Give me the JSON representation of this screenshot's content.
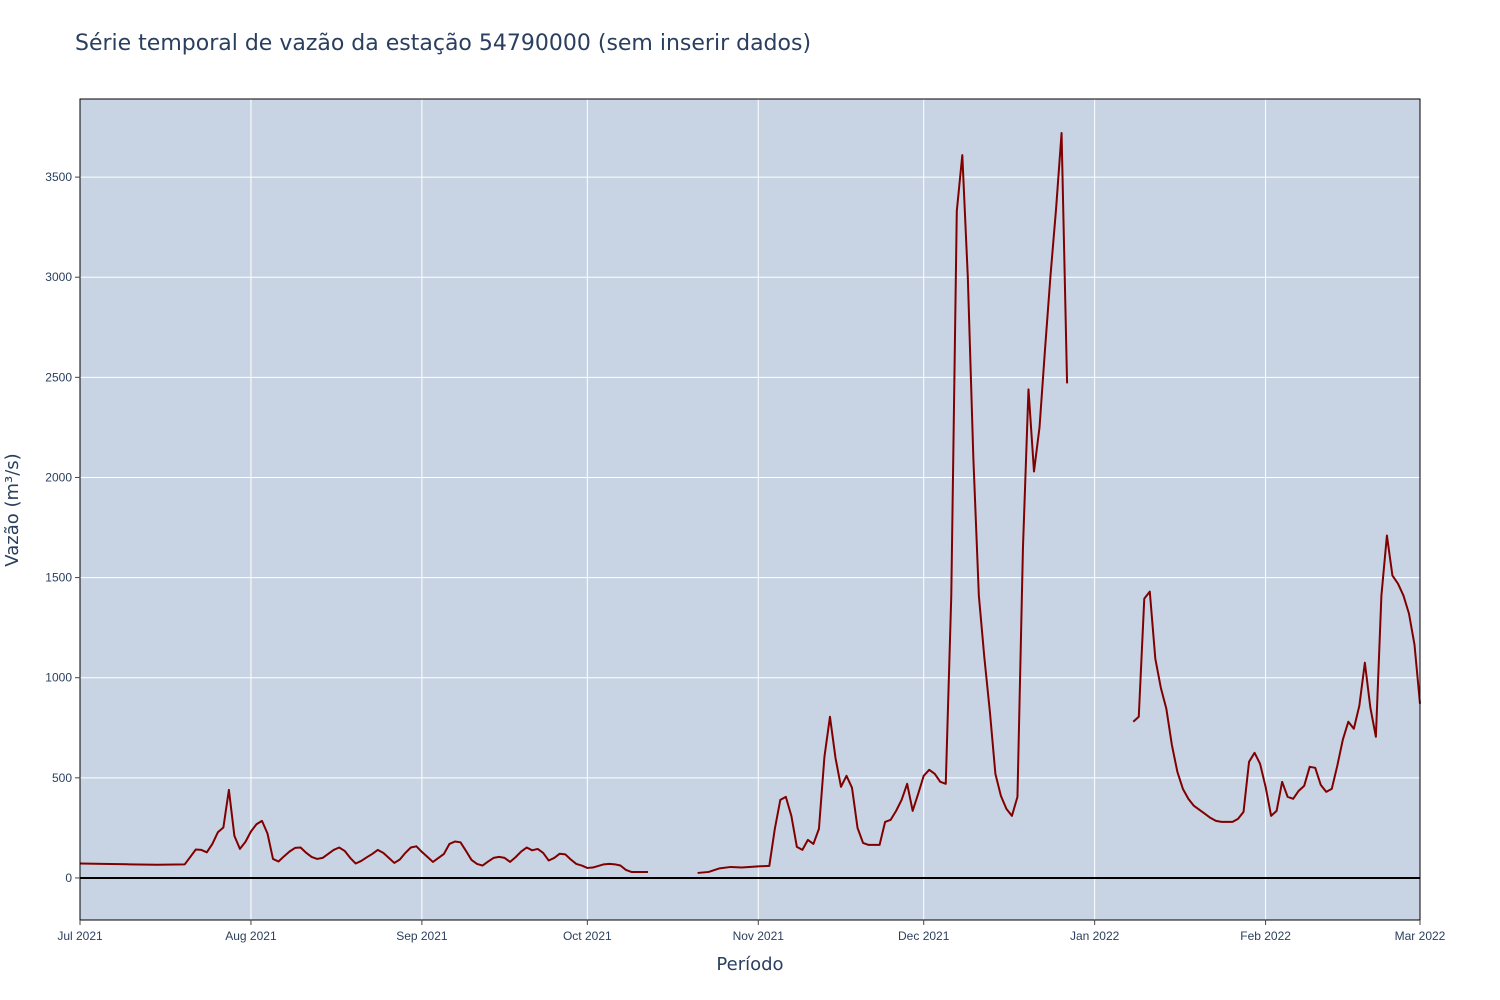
{
  "chart_data": {
    "type": "line",
    "title": "Série temporal de vazão da estação 54790000 (sem inserir dados)",
    "xlabel": "Período",
    "ylabel": "Vazão (m³/s)",
    "xlim": [
      "2021-07-01",
      "2022-03-01"
    ],
    "ylim": [
      -210,
      3890
    ],
    "y_ticks": [
      0,
      500,
      1000,
      1500,
      2000,
      2500,
      3000,
      3500
    ],
    "x_ticks": [
      {
        "date": "2021-07-01",
        "label": "Jul 2021"
      },
      {
        "date": "2021-08-01",
        "label": "Aug 2021"
      },
      {
        "date": "2021-09-01",
        "label": "Sep 2021"
      },
      {
        "date": "2021-10-01",
        "label": "Oct 2021"
      },
      {
        "date": "2021-11-01",
        "label": "Nov 2021"
      },
      {
        "date": "2021-12-01",
        "label": "Dec 2021"
      },
      {
        "date": "2022-01-01",
        "label": "Jan 2022"
      },
      {
        "date": "2022-02-01",
        "label": "Feb 2022"
      },
      {
        "date": "2022-03-01",
        "label": "Mar 2022"
      }
    ],
    "grid": true,
    "zero_line": true,
    "colors": {
      "line": "#800000",
      "plot_bg": "#c8d4e3",
      "grid": "#ffffff",
      "text": "#2a3f5f",
      "zero_line": "#000000"
    },
    "series": [
      {
        "segments": [
          {
            "x": [
              "2021-07-01",
              "2021-07-05",
              "2021-07-10",
              "2021-07-15",
              "2021-07-20",
              "2021-07-21",
              "2021-07-22",
              "2021-07-23",
              "2021-07-24",
              "2021-07-25",
              "2021-07-26",
              "2021-07-27",
              "2021-07-28",
              "2021-07-29",
              "2021-07-30",
              "2021-07-31",
              "2021-08-01",
              "2021-08-02",
              "2021-08-03",
              "2021-08-04",
              "2021-08-05",
              "2021-08-06",
              "2021-08-07",
              "2021-08-08",
              "2021-08-09",
              "2021-08-10",
              "2021-08-11",
              "2021-08-12",
              "2021-08-13",
              "2021-08-14",
              "2021-08-15",
              "2021-08-16",
              "2021-08-17",
              "2021-08-18",
              "2021-08-19",
              "2021-08-20",
              "2021-08-21",
              "2021-08-22",
              "2021-08-23",
              "2021-08-24",
              "2021-08-25",
              "2021-08-26",
              "2021-08-27",
              "2021-08-28",
              "2021-08-29",
              "2021-08-30",
              "2021-08-31",
              "2021-09-01",
              "2021-09-02",
              "2021-09-03",
              "2021-09-04",
              "2021-09-05",
              "2021-09-06",
              "2021-09-07",
              "2021-09-08",
              "2021-09-09",
              "2021-09-10",
              "2021-09-11",
              "2021-09-12",
              "2021-09-13",
              "2021-09-14",
              "2021-09-15",
              "2021-09-16",
              "2021-09-17",
              "2021-09-18",
              "2021-09-19",
              "2021-09-20",
              "2021-09-21",
              "2021-09-22",
              "2021-09-23",
              "2021-09-24",
              "2021-09-25",
              "2021-09-26",
              "2021-09-27",
              "2021-09-28",
              "2021-09-29",
              "2021-09-30",
              "2021-10-01",
              "2021-10-02",
              "2021-10-03",
              "2021-10-04",
              "2021-10-05",
              "2021-10-06",
              "2021-10-07",
              "2021-10-08",
              "2021-10-09",
              "2021-10-10",
              "2021-10-11",
              "2021-10-12"
            ],
            "y": [
              72,
              70,
              68,
              66,
              68,
              105,
              142,
              140,
              128,
              170,
              228,
              252,
              440,
              210,
              145,
              180,
              232,
              268,
              285,
              222,
              95,
              82,
              108,
              132,
              150,
              152,
              126,
              105,
              95,
              100,
              120,
              140,
              152,
              135,
              100,
              72,
              85,
              103,
              120,
              140,
              125,
              100,
              75,
              92,
              125,
              152,
              158,
              130,
              105,
              80,
              100,
              120,
              170,
              182,
              178,
              135,
              90,
              70,
              62,
              82,
              100,
              105,
              100,
              80,
              104,
              132,
              152,
              138,
              145,
              125,
              87,
              100,
              121,
              118,
              92,
              70,
              62,
              50,
              52,
              60,
              68,
              70,
              68,
              62,
              40,
              30,
              30,
              30,
              30
            ]
          },
          {
            "x": [
              "2021-10-21",
              "2021-10-23",
              "2021-10-25",
              "2021-10-27",
              "2021-10-29",
              "2021-11-01",
              "2021-11-03",
              "2021-11-04",
              "2021-11-05",
              "2021-11-06",
              "2021-11-07",
              "2021-11-08",
              "2021-11-09",
              "2021-11-10",
              "2021-11-11",
              "2021-11-12",
              "2021-11-13",
              "2021-11-14",
              "2021-11-15",
              "2021-11-16",
              "2021-11-17",
              "2021-11-18",
              "2021-11-19",
              "2021-11-20",
              "2021-11-21",
              "2021-11-22",
              "2021-11-23",
              "2021-11-24",
              "2021-11-25",
              "2021-11-26",
              "2021-11-27",
              "2021-11-28",
              "2021-11-29",
              "2021-11-30",
              "2021-12-01",
              "2021-12-02",
              "2021-12-03",
              "2021-12-04",
              "2021-12-05",
              "2021-12-06",
              "2021-12-07",
              "2021-12-08",
              "2021-12-09",
              "2021-12-10",
              "2021-12-11",
              "2021-12-12",
              "2021-12-13",
              "2021-12-14",
              "2021-12-15",
              "2021-12-16",
              "2021-12-17",
              "2021-12-18",
              "2021-12-19",
              "2021-12-20",
              "2021-12-21",
              "2021-12-22",
              "2021-12-23",
              "2021-12-24",
              "2021-12-25",
              "2021-12-26",
              "2021-12-27",
              "2021-12-28",
              "2021-12-29",
              "2021-12-30"
            ],
            "y": [
              25,
              30,
              48,
              55,
              52,
              58,
              60,
              245,
              390,
              405,
              310,
              155,
              140,
              190,
              170,
              245,
              605,
              805,
              600,
              455,
              510,
              450,
              250,
              175,
              165,
              165,
              165,
              280,
              290,
              335,
              390,
              470,
              335,
              420,
              510,
              540,
              520,
              480,
              470,
              1410,
              3330,
              3610,
              3000,
              2100,
              1410,
              1100,
              830,
              520,
              410,
              345,
              310,
              405,
              1650,
              2440,
              2030,
              2250,
              2640,
              3010,
              3340,
              3720,
              2470,
              null,
              null,
              null
            ]
          },
          {
            "x": [
              "2022-01-08",
              "2022-01-09",
              "2022-01-10",
              "2022-01-11",
              "2022-01-12",
              "2022-01-13",
              "2022-01-14",
              "2022-01-15",
              "2022-01-16",
              "2022-01-17",
              "2022-01-18",
              "2022-01-19",
              "2022-01-20",
              "2022-01-21",
              "2022-01-22",
              "2022-01-23",
              "2022-01-24",
              "2022-01-25",
              "2022-01-26",
              "2022-01-27",
              "2022-01-28",
              "2022-01-29",
              "2022-01-30",
              "2022-01-31",
              "2022-02-01",
              "2022-02-02",
              "2022-02-03",
              "2022-02-04",
              "2022-02-05",
              "2022-02-06",
              "2022-02-07",
              "2022-02-08",
              "2022-02-09",
              "2022-02-10",
              "2022-02-11",
              "2022-02-12",
              "2022-02-13",
              "2022-02-14",
              "2022-02-15",
              "2022-02-16",
              "2022-02-17",
              "2022-02-18",
              "2022-02-19",
              "2022-02-20",
              "2022-02-21",
              "2022-02-22",
              "2022-02-23",
              "2022-02-24",
              "2022-02-25",
              "2022-02-26",
              "2022-02-27",
              "2022-02-28",
              "2022-03-01"
            ],
            "y": [
              780,
              805,
              1395,
              1430,
              1095,
              950,
              845,
              665,
              530,
              445,
              395,
              360,
              340,
              320,
              300,
              285,
              280,
              280,
              280,
              295,
              330,
              580,
              625,
              570,
              455,
              310,
              335,
              480,
              405,
              395,
              435,
              460,
              555,
              550,
              465,
              430,
              445,
              560,
              690,
              780,
              745,
              860,
              1075,
              850,
              705,
              1410,
              1710,
              1510,
              1470,
              1410,
              1320,
              1165,
              870
            ]
          }
        ]
      }
    ]
  }
}
